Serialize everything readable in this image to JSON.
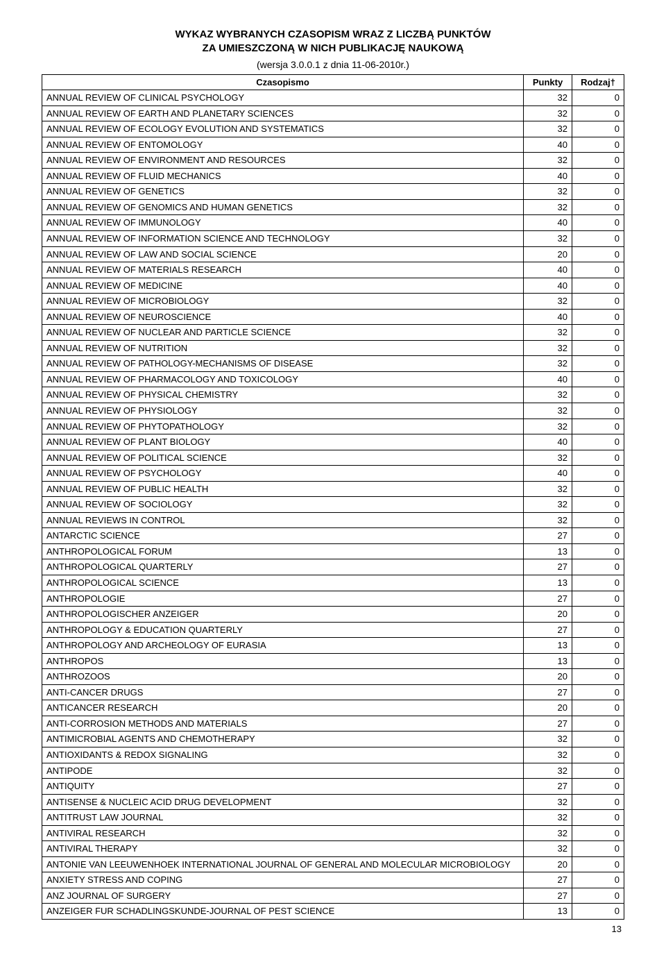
{
  "header": {
    "line1": "WYKAZ WYBRANYCH CZASOPISM WRAZ Z LICZBĄ PUNKTÓW",
    "line2": "ZA UMIESZCZONĄ W NICH PUBLIKACJĘ NAUKOWĄ",
    "sub": "(wersja 3.0.0.1 z dnia 11-06-2010r.)"
  },
  "table": {
    "columns": [
      "Czasopismo",
      "Punkty",
      "Rodzaj†"
    ],
    "col_align": [
      "left",
      "right",
      "right"
    ],
    "rows": [
      [
        "ANNUAL REVIEW OF CLINICAL PSYCHOLOGY",
        "32",
        "0"
      ],
      [
        "ANNUAL REVIEW OF EARTH AND PLANETARY SCIENCES",
        "32",
        "0"
      ],
      [
        "ANNUAL REVIEW OF ECOLOGY EVOLUTION AND SYSTEMATICS",
        "32",
        "0"
      ],
      [
        "ANNUAL REVIEW OF ENTOMOLOGY",
        "40",
        "0"
      ],
      [
        "ANNUAL REVIEW OF ENVIRONMENT AND RESOURCES",
        "32",
        "0"
      ],
      [
        "ANNUAL REVIEW OF FLUID MECHANICS",
        "40",
        "0"
      ],
      [
        "ANNUAL REVIEW OF GENETICS",
        "32",
        "0"
      ],
      [
        "ANNUAL REVIEW OF GENOMICS AND HUMAN GENETICS",
        "32",
        "0"
      ],
      [
        "ANNUAL REVIEW OF IMMUNOLOGY",
        "40",
        "0"
      ],
      [
        "ANNUAL REVIEW OF INFORMATION SCIENCE AND TECHNOLOGY",
        "32",
        "0"
      ],
      [
        "ANNUAL REVIEW OF LAW AND SOCIAL SCIENCE",
        "20",
        "0"
      ],
      [
        "ANNUAL REVIEW OF MATERIALS RESEARCH",
        "40",
        "0"
      ],
      [
        "ANNUAL REVIEW OF MEDICINE",
        "40",
        "0"
      ],
      [
        "ANNUAL REVIEW OF MICROBIOLOGY",
        "32",
        "0"
      ],
      [
        "ANNUAL REVIEW OF NEUROSCIENCE",
        "40",
        "0"
      ],
      [
        "ANNUAL REVIEW OF NUCLEAR AND PARTICLE SCIENCE",
        "32",
        "0"
      ],
      [
        "ANNUAL REVIEW OF NUTRITION",
        "32",
        "0"
      ],
      [
        "ANNUAL REVIEW OF PATHOLOGY-MECHANISMS OF DISEASE",
        "32",
        "0"
      ],
      [
        "ANNUAL REVIEW OF PHARMACOLOGY AND TOXICOLOGY",
        "40",
        "0"
      ],
      [
        "ANNUAL REVIEW OF PHYSICAL CHEMISTRY",
        "32",
        "0"
      ],
      [
        "ANNUAL REVIEW OF PHYSIOLOGY",
        "32",
        "0"
      ],
      [
        "ANNUAL REVIEW OF PHYTOPATHOLOGY",
        "32",
        "0"
      ],
      [
        "ANNUAL REVIEW OF PLANT BIOLOGY",
        "40",
        "0"
      ],
      [
        "ANNUAL REVIEW OF POLITICAL SCIENCE",
        "32",
        "0"
      ],
      [
        "ANNUAL REVIEW OF PSYCHOLOGY",
        "40",
        "0"
      ],
      [
        "ANNUAL REVIEW OF PUBLIC HEALTH",
        "32",
        "0"
      ],
      [
        "ANNUAL REVIEW OF SOCIOLOGY",
        "32",
        "0"
      ],
      [
        "ANNUAL REVIEWS IN CONTROL",
        "32",
        "0"
      ],
      [
        "ANTARCTIC SCIENCE",
        "27",
        "0"
      ],
      [
        "ANTHROPOLOGICAL FORUM",
        "13",
        "0"
      ],
      [
        "ANTHROPOLOGICAL QUARTERLY",
        "27",
        "0"
      ],
      [
        "ANTHROPOLOGICAL SCIENCE",
        "13",
        "0"
      ],
      [
        "ANTHROPOLOGIE",
        "27",
        "0"
      ],
      [
        "ANTHROPOLOGISCHER ANZEIGER",
        "20",
        "0"
      ],
      [
        "ANTHROPOLOGY & EDUCATION QUARTERLY",
        "27",
        "0"
      ],
      [
        "ANTHROPOLOGY AND ARCHEOLOGY OF EURASIA",
        "13",
        "0"
      ],
      [
        "ANTHROPOS",
        "13",
        "0"
      ],
      [
        "ANTHROZOOS",
        "20",
        "0"
      ],
      [
        "ANTI-CANCER DRUGS",
        "27",
        "0"
      ],
      [
        "ANTICANCER RESEARCH",
        "20",
        "0"
      ],
      [
        "ANTI-CORROSION METHODS AND MATERIALS",
        "27",
        "0"
      ],
      [
        "ANTIMICROBIAL AGENTS AND CHEMOTHERAPY",
        "32",
        "0"
      ],
      [
        "ANTIOXIDANTS & REDOX SIGNALING",
        "32",
        "0"
      ],
      [
        "ANTIPODE",
        "32",
        "0"
      ],
      [
        "ANTIQUITY",
        "27",
        "0"
      ],
      [
        "ANTISENSE & NUCLEIC ACID DRUG DEVELOPMENT",
        "32",
        "0"
      ],
      [
        "ANTITRUST LAW JOURNAL",
        "32",
        "0"
      ],
      [
        "ANTIVIRAL RESEARCH",
        "32",
        "0"
      ],
      [
        "ANTIVIRAL THERAPY",
        "32",
        "0"
      ],
      [
        "ANTONIE VAN LEEUWENHOEK INTERNATIONAL JOURNAL OF GENERAL AND MOLECULAR MICROBIOLOGY",
        "20",
        "0"
      ],
      [
        "ANXIETY STRESS AND COPING",
        "27",
        "0"
      ],
      [
        "ANZ JOURNAL OF SURGERY",
        "27",
        "0"
      ],
      [
        "ANZEIGER FUR SCHADLINGSKUNDE-JOURNAL OF PEST SCIENCE",
        "13",
        "0"
      ]
    ]
  },
  "page_number": "13"
}
